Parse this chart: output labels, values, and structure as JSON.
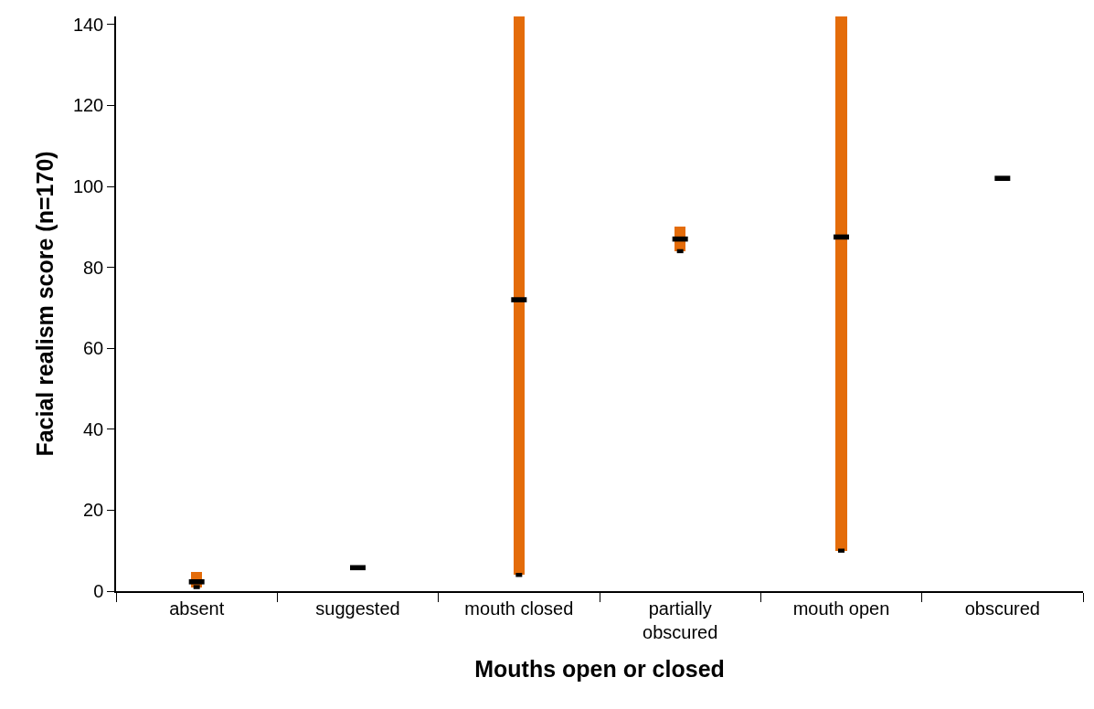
{
  "chart_data": {
    "type": "bar",
    "xlabel": "Mouths open or closed",
    "ylabel": "Facial realism score (n=170)",
    "categories": [
      "absent",
      "suggested",
      "mouth closed",
      "partially obscured",
      "mouth open",
      "obscured"
    ],
    "series": [
      {
        "color": "#e46c0a",
        "base": [
          1,
          null,
          4,
          84,
          10,
          null
        ],
        "values": [
          3.7,
          null,
          138,
          6,
          132,
          null
        ]
      },
      {
        "type": "scatter",
        "marker": "square",
        "color": "#000000",
        "values": [
          2.3,
          5.8,
          72,
          87,
          87.5,
          102
        ]
      },
      {
        "type": "scatter",
        "marker": "square",
        "color": "#000000",
        "values": [
          1,
          null,
          4,
          84,
          10,
          null
        ]
      }
    ],
    "ylim": [
      0,
      142
    ],
    "yticks": [
      0,
      20,
      40,
      60,
      80,
      100,
      120,
      140
    ]
  }
}
